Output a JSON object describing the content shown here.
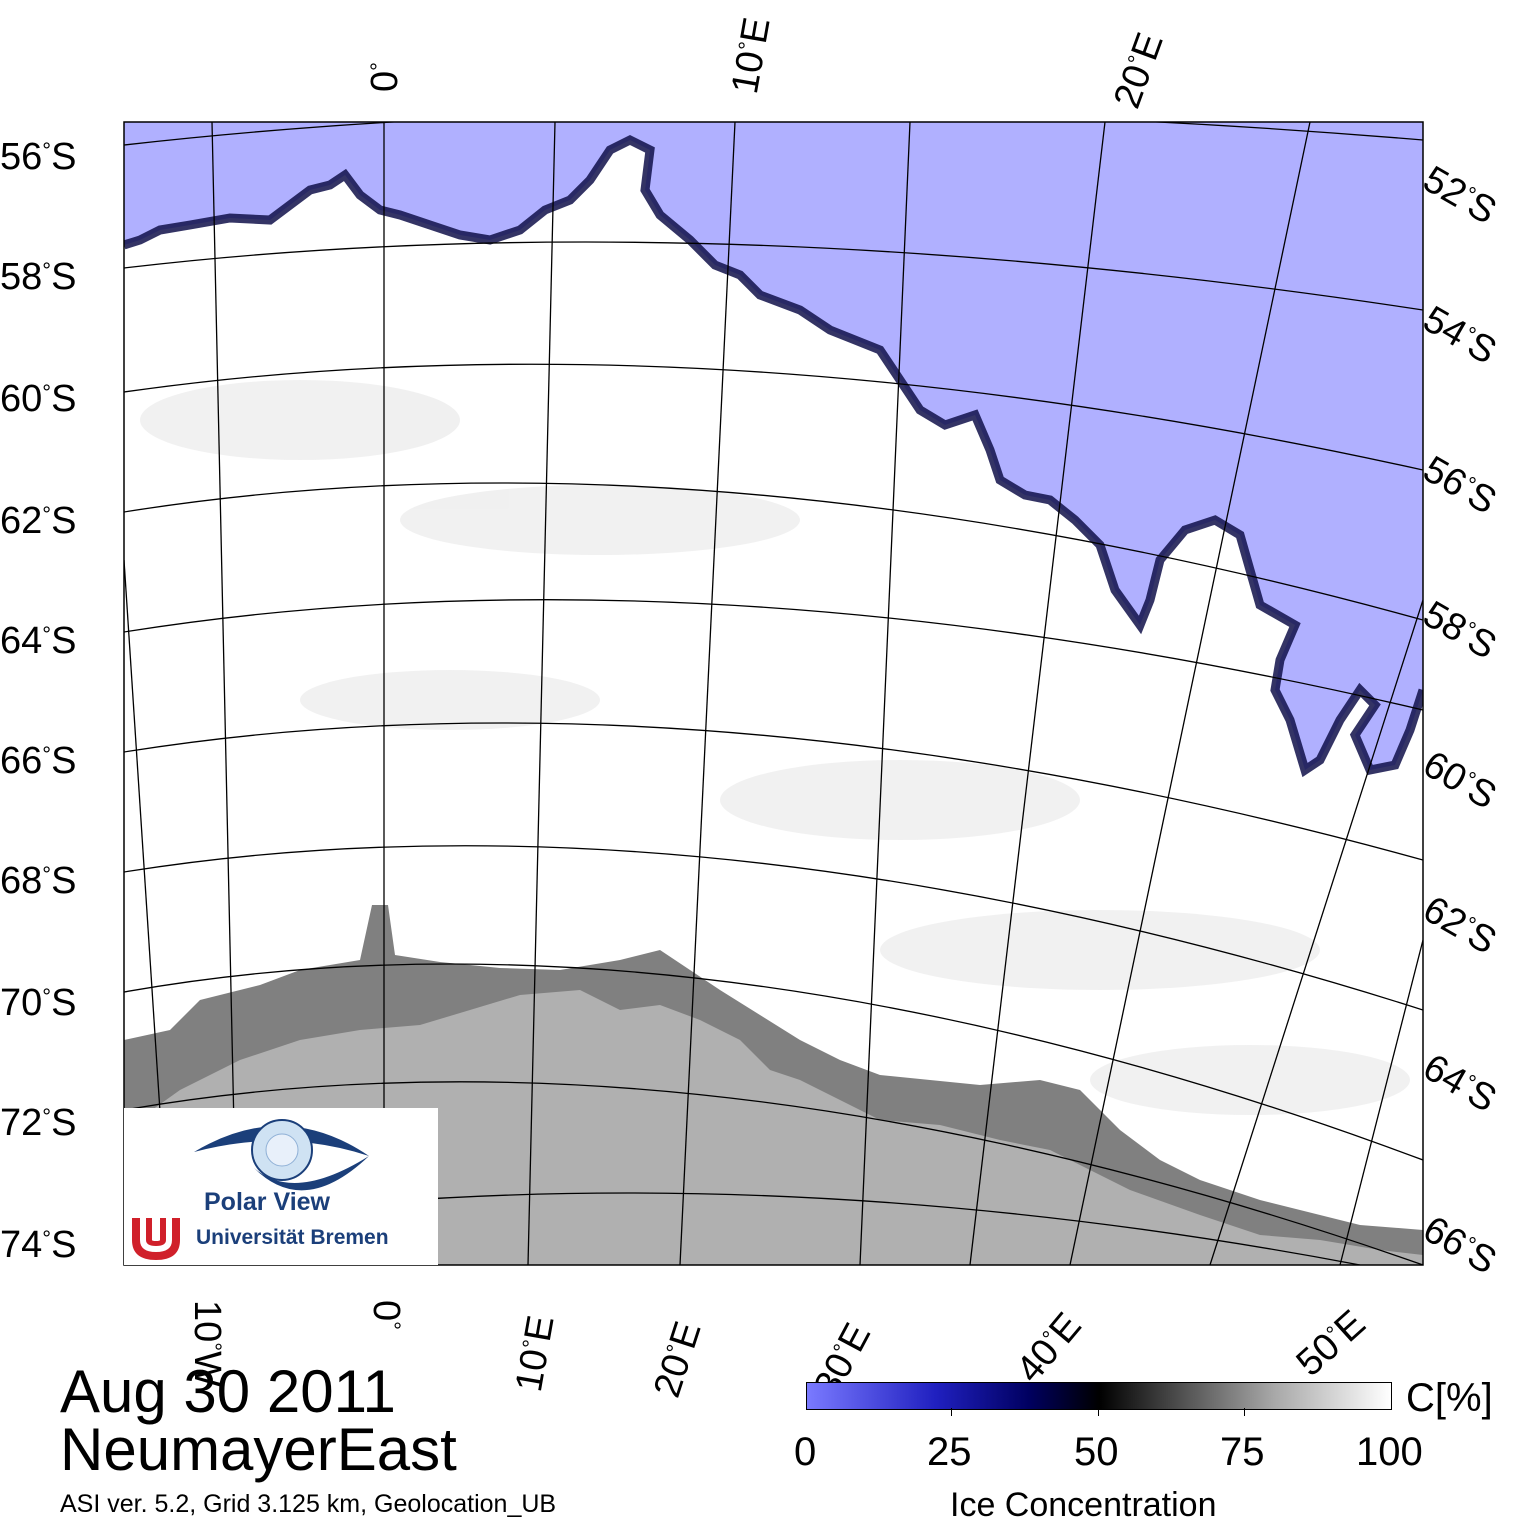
{
  "map": {
    "date": "Aug 30 2011",
    "region": "NeumayerEast",
    "metadata": "ASI ver. 5.2,  Grid 3.125 km, Geolocation_UB",
    "degree_symbol": "°",
    "lat_labels_left": [
      "56",
      "58",
      "60",
      "62",
      "64",
      "66",
      "68",
      "70",
      "72",
      "74"
    ],
    "lat_labels_right": [
      "52",
      "54",
      "56",
      "58",
      "60",
      "62",
      "64",
      "66"
    ],
    "lat_suffix": "S",
    "lon_labels_top": [
      "0",
      "10",
      "20"
    ],
    "lon_labels_bottom": [
      "10",
      "0",
      "10",
      "20",
      "30",
      "40",
      "50"
    ],
    "lon_suffix_east": "E",
    "lon_suffix_west": "W",
    "colors": {
      "open_water": "#b0b0ff",
      "land": "#b0b0b0",
      "ice_shelf": "#808080",
      "sea_ice": "#ffffff"
    }
  },
  "legend": {
    "unit": "C[%]",
    "title": "Ice Concentration",
    "ticks": [
      "0",
      "25",
      "50",
      "75",
      "100"
    ]
  },
  "logo": {
    "line1": "Polar View",
    "line2": "Universität Bremen"
  }
}
